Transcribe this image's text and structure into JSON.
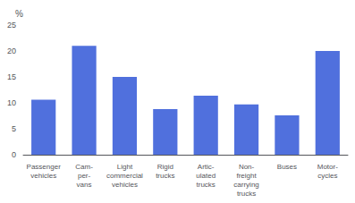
{
  "chart_data": {
    "type": "bar",
    "ylabel": "%",
    "categories": [
      "Passenger\nvehicles",
      "Cam-\nper-\nvans",
      "Light\ncommercial\nvehicles",
      "Rigid\ntrucks",
      "Artic-\nulated\ntrucks",
      "Non-\nfreight\ncarrying\ntrucks",
      "Buses",
      "Motor-\ncycles"
    ],
    "values": [
      10.6,
      21.0,
      15.0,
      8.8,
      11.4,
      9.7,
      7.6,
      20.0
    ],
    "ylim": [
      0,
      25
    ],
    "yticks": [
      0,
      5,
      10,
      15,
      20,
      25
    ],
    "grid": false
  }
}
